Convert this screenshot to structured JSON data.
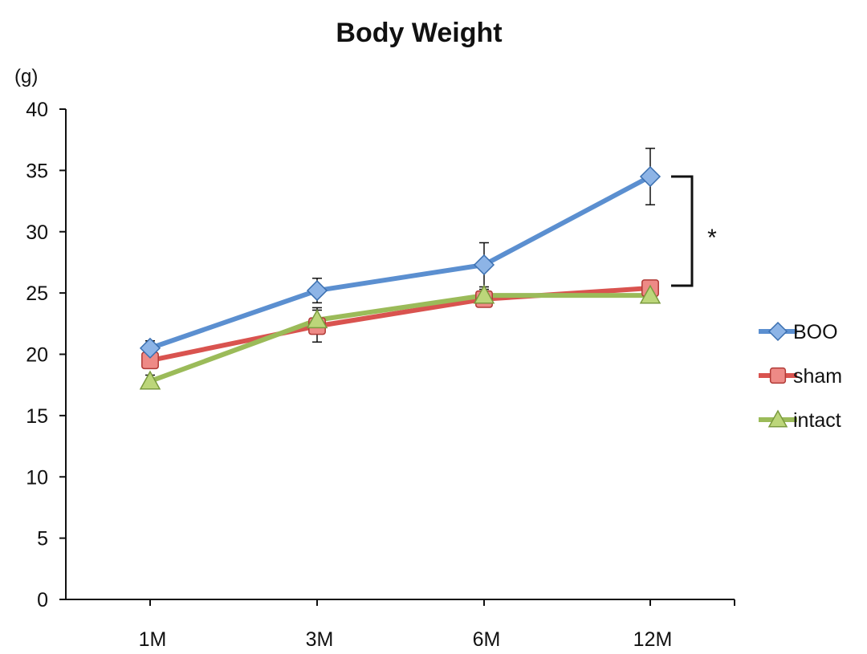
{
  "chart_data": {
    "type": "line",
    "title": "Body Weight",
    "ylabel": "(g)",
    "xlabel": "",
    "categories": [
      "1M",
      "3M",
      "6M",
      "12M"
    ],
    "ylim": [
      0,
      40
    ],
    "yticks": [
      0,
      5,
      10,
      15,
      20,
      25,
      30,
      35,
      40
    ],
    "grid": false,
    "legend_position": "right",
    "series": [
      {
        "name": "BOO",
        "values": [
          20.5,
          25.2,
          27.3,
          34.5
        ],
        "errors": [
          0.6,
          1.0,
          1.8,
          2.3
        ],
        "color": "#5B8FD0",
        "marker": "diamond"
      },
      {
        "name": "sham",
        "values": [
          19.5,
          22.3,
          24.5,
          25.4
        ],
        "errors": [
          0.6,
          1.3,
          0.4,
          0.6
        ],
        "color": "#D9534F",
        "marker": "square"
      },
      {
        "name": "intact",
        "values": [
          17.8,
          22.8,
          24.8,
          24.8
        ],
        "errors": [
          0.5,
          1.0,
          0.5,
          0.4
        ],
        "color": "#9BBB59",
        "marker": "triangle"
      }
    ],
    "annotation": {
      "text": "*"
    }
  }
}
